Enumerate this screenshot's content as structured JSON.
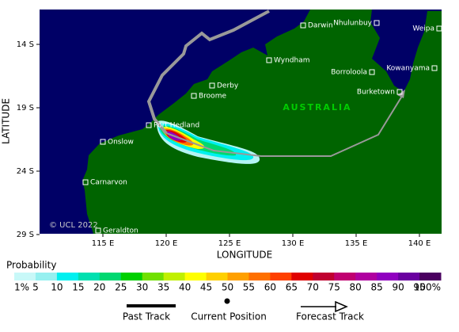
{
  "map": {
    "x_label": "LONGITUDE",
    "y_label": "LATITUDE",
    "xticks": [
      {
        "value": 115,
        "label": "115 E"
      },
      {
        "value": 120,
        "label": "120 E"
      },
      {
        "value": 125,
        "label": "125 E"
      },
      {
        "value": 130,
        "label": "130 E"
      },
      {
        "value": 135,
        "label": "135 E"
      },
      {
        "value": 140,
        "label": "140 E"
      }
    ],
    "yticks": [
      {
        "value": -14,
        "label": "14 S"
      },
      {
        "value": -19,
        "label": "19 S"
      },
      {
        "value": -24,
        "label": "24 S"
      },
      {
        "value": -29,
        "label": "29 S"
      }
    ],
    "region_label": "AUSTRALIA",
    "copyright": "© UCL 2022",
    "places": [
      "Darwin",
      "Nhulunbuy",
      "Weipa",
      "Wyndham",
      "Kowanyama",
      "Borroloola",
      "Burketown",
      "Derby",
      "Broome",
      "Port Hedland",
      "Onslow",
      "Carnarvon",
      "Geraldton"
    ]
  },
  "legend": {
    "title": "Probability",
    "scale": [
      {
        "value": 1,
        "label": "1%"
      },
      5,
      10,
      15,
      20,
      25,
      30,
      35,
      40,
      45,
      50,
      55,
      60,
      65,
      70,
      75,
      80,
      85,
      90,
      95,
      {
        "value": 100,
        "label": "100%"
      }
    ],
    "colors": [
      "#c8f8f8",
      "#96f0f0",
      "#00f0f0",
      "#00e0b0",
      "#00d870",
      "#00d000",
      "#70e000",
      "#c0f000",
      "#ffff00",
      "#ffd000",
      "#ffa000",
      "#ff7000",
      "#ff4000",
      "#e00000",
      "#c00030",
      "#c00070",
      "#b000a0",
      "#9000c0",
      "#6a00a0",
      "#4a0060"
    ],
    "items": [
      "Past Track",
      "Current Position",
      "Forecast Track"
    ]
  }
}
